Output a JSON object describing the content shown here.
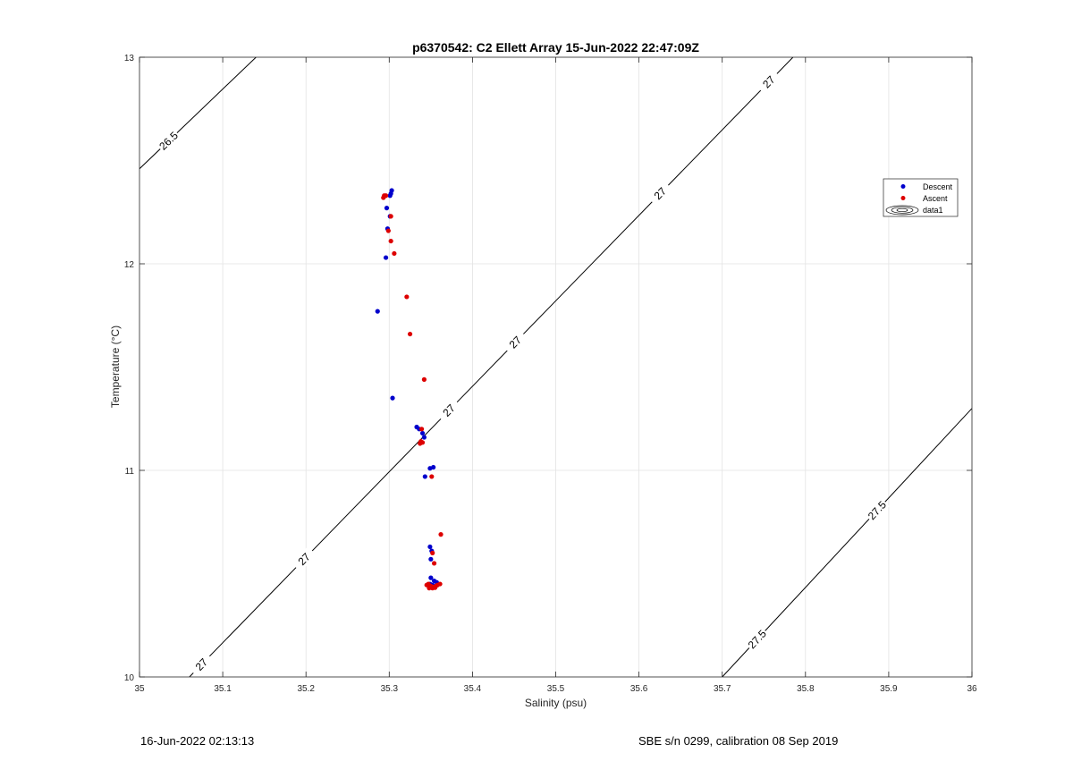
{
  "chart_data": {
    "type": "scatter",
    "title": "p6370542: C2 Ellett Array 15-Jun-2022 22:47:09Z",
    "xlabel": "Salinity (psu)",
    "ylabel": "Temperature (°C)",
    "xlim": [
      35,
      36
    ],
    "ylim": [
      10,
      13
    ],
    "xticks": [
      "35",
      "35.1",
      "35.2",
      "35.3",
      "35.4",
      "35.5",
      "35.6",
      "35.7",
      "35.8",
      "35.9",
      "36"
    ],
    "yticks": [
      "10",
      "11",
      "12",
      "13"
    ],
    "grid": true,
    "legend_position": "upper-right",
    "legend": [
      "Descent",
      "Ascent",
      "data1"
    ],
    "series": [
      {
        "name": "Descent",
        "color": "#0000cc",
        "points": [
          [
            35.303,
            12.355
          ],
          [
            35.302,
            12.34
          ],
          [
            35.301,
            12.33
          ],
          [
            35.297,
            12.27
          ],
          [
            35.301,
            12.23
          ],
          [
            35.298,
            12.17
          ],
          [
            35.296,
            12.03
          ],
          [
            35.286,
            11.77
          ],
          [
            35.304,
            11.35
          ],
          [
            35.333,
            11.21
          ],
          [
            35.336,
            11.2
          ],
          [
            35.34,
            11.18
          ],
          [
            35.342,
            11.16
          ],
          [
            35.349,
            11.01
          ],
          [
            35.353,
            11.015
          ],
          [
            35.343,
            10.97
          ],
          [
            35.349,
            10.63
          ],
          [
            35.351,
            10.61
          ],
          [
            35.35,
            10.57
          ],
          [
            35.35,
            10.48
          ],
          [
            35.354,
            10.465
          ],
          [
            35.357,
            10.458
          ],
          [
            35.349,
            10.45
          ],
          [
            35.352,
            10.445
          ]
        ]
      },
      {
        "name": "Ascent",
        "color": "#dd0000",
        "points": [
          [
            35.294,
            12.33
          ],
          [
            35.293,
            12.32
          ],
          [
            35.296,
            12.33
          ],
          [
            35.302,
            12.23
          ],
          [
            35.299,
            12.16
          ],
          [
            35.302,
            12.11
          ],
          [
            35.306,
            12.05
          ],
          [
            35.321,
            11.84
          ],
          [
            35.325,
            11.66
          ],
          [
            35.342,
            11.44
          ],
          [
            35.337,
            11.13
          ],
          [
            35.34,
            11.135
          ],
          [
            35.338,
            11.14
          ],
          [
            35.339,
            11.2
          ],
          [
            35.351,
            10.97
          ],
          [
            35.362,
            10.69
          ],
          [
            35.352,
            10.6
          ],
          [
            35.354,
            10.55
          ],
          [
            35.347,
            10.45
          ],
          [
            35.35,
            10.44
          ],
          [
            35.353,
            10.435
          ],
          [
            35.356,
            10.44
          ],
          [
            35.358,
            10.445
          ],
          [
            35.361,
            10.45
          ],
          [
            35.348,
            10.43
          ],
          [
            35.352,
            10.43
          ],
          [
            35.355,
            10.432
          ],
          [
            35.345,
            10.445
          ]
        ]
      }
    ],
    "isopycnals": [
      {
        "label": "26.5",
        "points": [
          [
            35.0,
            12.46
          ],
          [
            35.14,
            13.0
          ]
        ],
        "labels_at": [
          0.25
        ]
      },
      {
        "label": "27",
        "points": [
          [
            35.06,
            10.0
          ],
          [
            35.785,
            13.0
          ]
        ],
        "labels_at": [
          0.02,
          0.19,
          0.43,
          0.54,
          0.78,
          0.96
        ]
      },
      {
        "label": "27.5",
        "points": [
          [
            35.7,
            10.0
          ],
          [
            36.0,
            11.3
          ]
        ],
        "labels_at": [
          0.14,
          0.62
        ]
      }
    ]
  },
  "footer": {
    "left": "16-Jun-2022 02:13:13",
    "right": "SBE s/n 0299, calibration 08 Sep 2019"
  }
}
